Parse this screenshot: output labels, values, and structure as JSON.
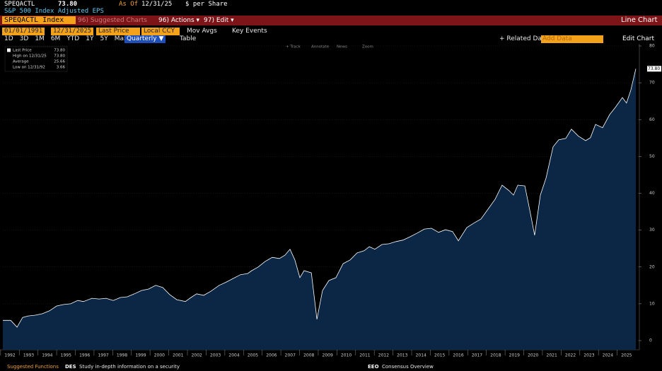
{
  "header": {
    "ticker": "SPEQACTL",
    "price": "73.80",
    "as_of_label": "As Of",
    "as_of_date": "12/31/25",
    "units": "$ per Share",
    "description": "S&P 500 Index Adjusted EPS"
  },
  "toolbar": {
    "security": "SPEQACTL Index",
    "suggested": "96) Suggested Charts",
    "actions": "96) Actions ▾",
    "edit": "97) Edit ▾",
    "chart_type": "Line Chart"
  },
  "controls": {
    "start_date": "01/01/1991",
    "end_date": "12/31/2025",
    "field": "Last Price",
    "currency": "Local CCY",
    "mov_avgs": "Mov Avgs",
    "key_events": "Key Events",
    "ranges": [
      "1D",
      "3D",
      "1M",
      "6M",
      "YTD",
      "1Y",
      "5Y",
      "Max"
    ],
    "frequency": "Quarterly ▼",
    "table": "Table",
    "related": "+ Related Dat",
    "add_data": "Add Data",
    "edit_chart": "Edit Chart"
  },
  "chart_tools": [
    "+ Track",
    "Annotate",
    "News",
    "Zoom"
  ],
  "footer": {
    "suggested": "Suggested Functions",
    "des_code": "DES",
    "des_text": "Study in-depth information on a security",
    "eeo_code": "EEO",
    "eeo_text": "Consensus Overview"
  },
  "chart_data": {
    "type": "line",
    "color": "#ffffff",
    "fill": "#0b2745",
    "grid": true,
    "legend_stats": [
      {
        "label": "Last Price",
        "value": "73.80"
      },
      {
        "label": "High on 12/31/25",
        "value": "73.80"
      },
      {
        "label": "Average",
        "value": "25.66"
      },
      {
        "label": "Low on 12/31/92",
        "value": "3.66"
      }
    ],
    "x": [
      1992.12,
      1992.54,
      1992.88,
      1993.18,
      1993.48,
      1993.86,
      1994.24,
      1994.62,
      1995.0,
      1995.38,
      1995.75,
      1996.13,
      1996.44,
      1996.89,
      1997.27,
      1997.65,
      1998.03,
      1998.41,
      1998.78,
      1999.16,
      1999.54,
      1999.92,
      2000.3,
      2000.68,
      2001.05,
      2001.43,
      2001.89,
      2002.19,
      2002.49,
      2002.87,
      2003.25,
      2003.7,
      2004.08,
      2004.46,
      2004.84,
      2005.22,
      2005.44,
      2005.79,
      2006.16,
      2006.54,
      2006.92,
      2007.22,
      2007.49,
      2007.75,
      2008.02,
      2008.24,
      2008.63,
      2008.93,
      2009.23,
      2009.57,
      2009.95,
      2010.33,
      2010.71,
      2011.08,
      2011.46,
      2011.73,
      2012.03,
      2012.41,
      2012.79,
      2013.17,
      2013.54,
      2013.92,
      2014.3,
      2014.68,
      2015.06,
      2015.44,
      2015.81,
      2016.19,
      2016.5,
      2016.95,
      2017.33,
      2017.71,
      2018.09,
      2018.47,
      2018.84,
      2019.22,
      2019.45,
      2019.68,
      2020.06,
      2020.36,
      2020.58,
      2020.89,
      2021.19,
      2021.57,
      2021.87,
      2022.25,
      2022.55,
      2022.93,
      2023.31,
      2023.57,
      2023.84,
      2024.22,
      2024.6,
      2024.9,
      2025.28,
      2025.5,
      2025.73,
      2026.0
    ],
    "values": [
      5.5,
      5.5,
      3.66,
      6.3,
      6.7,
      6.9,
      7.3,
      8.1,
      9.4,
      9.8,
      10.0,
      10.9,
      10.6,
      11.5,
      11.3,
      11.5,
      10.9,
      11.7,
      11.9,
      12.7,
      13.6,
      14.0,
      15.0,
      14.4,
      12.5,
      11.1,
      10.6,
      11.7,
      12.7,
      12.3,
      13.4,
      15.0,
      15.9,
      16.9,
      17.9,
      18.2,
      19.0,
      20.0,
      21.5,
      22.6,
      22.3,
      23.2,
      24.8,
      21.9,
      17.1,
      19.0,
      18.4,
      5.8,
      13.6,
      16.3,
      17.1,
      20.9,
      21.9,
      23.8,
      24.4,
      25.5,
      24.8,
      26.1,
      26.3,
      26.9,
      27.3,
      28.2,
      29.2,
      30.3,
      30.5,
      29.4,
      30.1,
      29.6,
      27.1,
      30.7,
      31.9,
      33.0,
      35.7,
      38.4,
      42.2,
      40.7,
      39.5,
      42.2,
      42.0,
      34.5,
      28.6,
      39.5,
      44.1,
      52.6,
      54.5,
      54.9,
      57.4,
      55.5,
      54.3,
      55.1,
      58.7,
      57.8,
      61.4,
      63.3,
      66.0,
      64.5,
      68.0,
      73.8
    ],
    "xlim": [
      1992.12,
      2026.15
    ],
    "xticks": [
      1992,
      1993,
      1994,
      1995,
      1996,
      1997,
      1998,
      1999,
      2000,
      2001,
      2002,
      2003,
      2004,
      2005,
      2006,
      2007,
      2008,
      2009,
      2010,
      2011,
      2012,
      2013,
      2014,
      2015,
      2016,
      2017,
      2018,
      2019,
      2020,
      2021,
      2022,
      2023,
      2024,
      2025
    ],
    "ylim": [
      0,
      80
    ],
    "yticks": [
      0,
      10,
      20,
      30,
      40,
      50,
      60,
      70,
      80
    ]
  }
}
